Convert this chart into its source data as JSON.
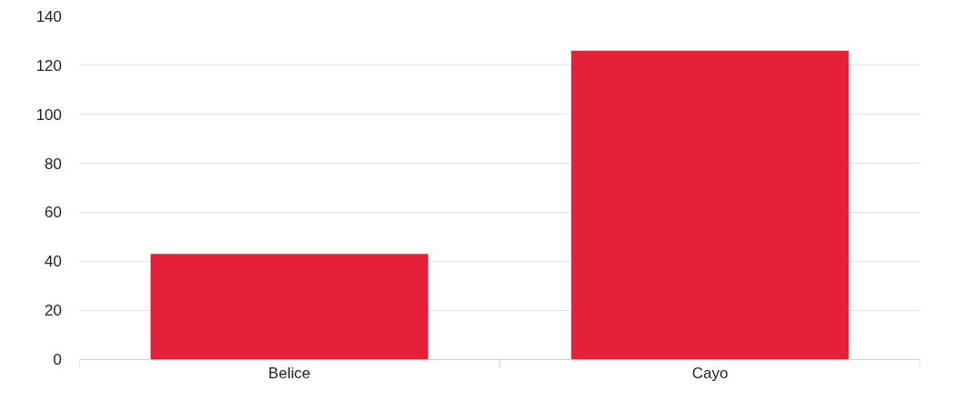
{
  "chart_data": {
    "type": "bar",
    "categories": [
      "Belice",
      "Cayo"
    ],
    "values": [
      43,
      126
    ],
    "color": "#e32139",
    "ylim": [
      0,
      140
    ],
    "yticks": [
      0,
      20,
      40,
      60,
      80,
      100,
      120,
      140
    ],
    "grid": "y"
  }
}
